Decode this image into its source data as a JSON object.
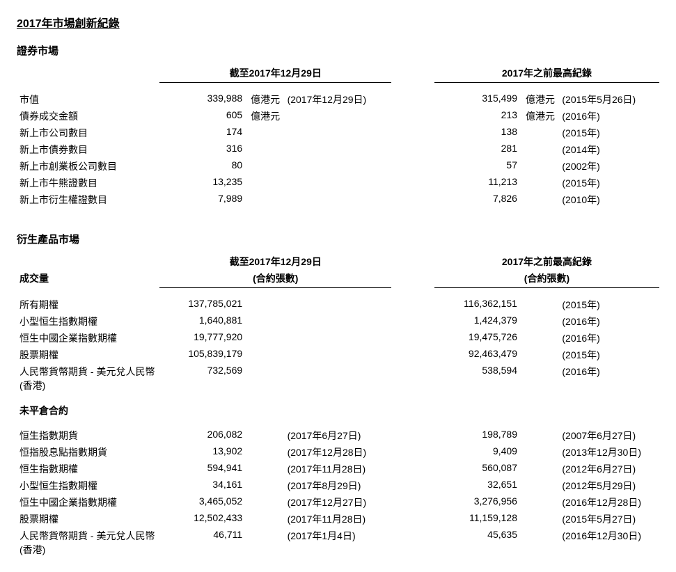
{
  "title": "2017年市場創新紀錄",
  "sec1": {
    "title": "證券市場",
    "hdr_left": "截至2017年12月29日",
    "hdr_right": "2017年之前最高紀錄",
    "rows": [
      {
        "label": "市值",
        "v1": "339,988",
        "u1": "億港元",
        "n1": "(2017年12月29日)",
        "v2": "315,499",
        "u2": "億港元",
        "n2": "(2015年5月26日)"
      },
      {
        "label": "債券成交金額",
        "v1": "605",
        "u1": "億港元",
        "n1": "",
        "v2": "213",
        "u2": "億港元",
        "n2": "(2016年)"
      },
      {
        "label": "新上市公司數目",
        "v1": "174",
        "u1": "",
        "n1": "",
        "v2": "138",
        "u2": "",
        "n2": "(2015年)"
      },
      {
        "label": "新上市債券數目",
        "v1": "316",
        "u1": "",
        "n1": "",
        "v2": "281",
        "u2": "",
        "n2": "(2014年)"
      },
      {
        "label": "新上市創業板公司數目",
        "v1": "80",
        "u1": "",
        "n1": "",
        "v2": "57",
        "u2": "",
        "n2": "(2002年)"
      },
      {
        "label": "新上市牛熊證數目",
        "v1": "13,235",
        "u1": "",
        "n1": "",
        "v2": "11,213",
        "u2": "",
        "n2": "(2015年)"
      },
      {
        "label": "新上市衍生權證數目",
        "v1": "7,989",
        "u1": "",
        "n1": "",
        "v2": "7,826",
        "u2": "",
        "n2": "(2010年)"
      }
    ]
  },
  "sec2": {
    "title": "衍生產品市場",
    "hdr_left": "截至2017年12月29日",
    "hdr_left_sub": "(合約張數)",
    "hdr_right": "2017年之前最高紀錄",
    "hdr_right_sub": "(合約張數)",
    "groupA": {
      "title": "成交量",
      "rows": [
        {
          "label": "所有期權",
          "v1": "137,785,021",
          "n1": "",
          "v2": "116,362,151",
          "n2": "(2015年)"
        },
        {
          "label": "小型恒生指數期權",
          "v1": "1,640,881",
          "n1": "",
          "v2": "1,424,379",
          "n2": "(2016年)"
        },
        {
          "label": "恒生中國企業指數期權",
          "v1": "19,777,920",
          "n1": "",
          "v2": "19,475,726",
          "n2": "(2016年)"
        },
        {
          "label": "股票期權",
          "v1": "105,839,179",
          "n1": "",
          "v2": "92,463,479",
          "n2": "(2015年)"
        },
        {
          "label": "人民幣貨幣期貨 - 美元兌人民幣(香港)",
          "v1": "732,569",
          "n1": "",
          "v2": "538,594",
          "n2": "(2016年)"
        }
      ]
    },
    "groupB": {
      "title": "未平倉合約",
      "rows": [
        {
          "label": "恒生指數期貨",
          "v1": "206,082",
          "n1": "(2017年6月27日)",
          "v2": "198,789",
          "n2": "(2007年6月27日)"
        },
        {
          "label": "恒指股息點指數期貨",
          "v1": "13,902",
          "n1": "(2017年12月28日)",
          "v2": "9,409",
          "n2": "(2013年12月30日)"
        },
        {
          "label": "恒生指數期權",
          "v1": "594,941",
          "n1": "(2017年11月28日)",
          "v2": "560,087",
          "n2": "(2012年6月27日)"
        },
        {
          "label": "小型恒生指數期權",
          "v1": "34,161",
          "n1": "(2017年8月29日)",
          "v2": "32,651",
          "n2": "(2012年5月29日)"
        },
        {
          "label": "恒生中國企業指數期權",
          "v1": "3,465,052",
          "n1": "(2017年12月27日)",
          "v2": "3,276,956",
          "n2": "(2016年12月28日)"
        },
        {
          "label": "股票期權",
          "v1": "12,502,433",
          "n1": "(2017年11月28日)",
          "v2": "11,159,128",
          "n2": "(2015年5月27日)"
        },
        {
          "label": "人民幣貨幣期貨 - 美元兌人民幣(香港)",
          "v1": "46,711",
          "n1": "(2017年1月4日)",
          "v2": "45,635",
          "n2": "(2016年12月30日)"
        }
      ]
    }
  }
}
